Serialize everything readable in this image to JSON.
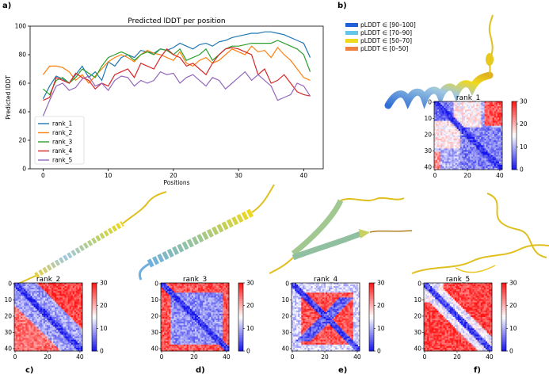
{
  "panel_labels": {
    "a": "a)",
    "b": "b)",
    "c": "c)",
    "d": "d)",
    "e": "e)",
    "f": "f)"
  },
  "plddt_legend": [
    {
      "label": "pLDDT ∈ [90–100]",
      "color": "#1f5fd8"
    },
    {
      "label": "pLDDT ∈ [70–90]",
      "color": "#63c6e8"
    },
    {
      "label": "pLDDT ∈ [50–70]",
      "color": "#f0d91c"
    },
    {
      "label": "pLDDT ∈ [0–50]",
      "color": "#f08040"
    }
  ],
  "chart_data": [
    {
      "type": "line",
      "title": "Predicted lDDT per position",
      "xlabel": "Positions",
      "ylabel": "Predicted lDDT",
      "xlim": [
        -2,
        43
      ],
      "ylim": [
        0,
        100
      ],
      "xticks": [
        0,
        10,
        20,
        30,
        40
      ],
      "yticks": [
        0,
        20,
        40,
        60,
        80,
        100
      ],
      "legend_position": "lower-left",
      "x": [
        0,
        1,
        2,
        3,
        4,
        5,
        6,
        7,
        8,
        9,
        10,
        11,
        12,
        13,
        14,
        15,
        16,
        17,
        18,
        19,
        20,
        21,
        22,
        23,
        24,
        25,
        26,
        27,
        28,
        29,
        30,
        31,
        32,
        33,
        34,
        35,
        36,
        37,
        38,
        39,
        40,
        41
      ],
      "series": [
        {
          "name": "rank_1",
          "color": "#1f77b4",
          "values": [
            49,
            58,
            65,
            63,
            60,
            66,
            72,
            64,
            68,
            62,
            75,
            72,
            78,
            80,
            78,
            83,
            82,
            81,
            84,
            83,
            85,
            88,
            86,
            84,
            87,
            88,
            86,
            89,
            90,
            92,
            93,
            94,
            95,
            95,
            96,
            96,
            95,
            94,
            92,
            90,
            88,
            78
          ]
        },
        {
          "name": "rank_2",
          "color": "#ff7f0e",
          "values": [
            66,
            72,
            72,
            71,
            68,
            62,
            66,
            60,
            65,
            70,
            75,
            78,
            80,
            78,
            75,
            80,
            83,
            81,
            80,
            78,
            76,
            82,
            74,
            72,
            76,
            78,
            74,
            76,
            80,
            84,
            82,
            80,
            86,
            82,
            83,
            78,
            85,
            80,
            76,
            70,
            64,
            62
          ]
        },
        {
          "name": "rank_3",
          "color": "#2ca02c",
          "values": [
            56,
            52,
            62,
            64,
            60,
            64,
            70,
            67,
            64,
            72,
            78,
            80,
            82,
            80,
            76,
            80,
            82,
            80,
            84,
            83,
            80,
            84,
            76,
            78,
            80,
            84,
            76,
            80,
            84,
            86,
            86,
            87,
            88,
            88,
            88,
            88,
            90,
            88,
            86,
            84,
            80,
            68
          ]
        },
        {
          "name": "rank_4",
          "color": "#d62728",
          "values": [
            48,
            50,
            64,
            62,
            60,
            67,
            64,
            62,
            56,
            60,
            58,
            66,
            68,
            70,
            64,
            74,
            72,
            70,
            78,
            84,
            80,
            78,
            72,
            74,
            70,
            66,
            74,
            80,
            84,
            85,
            84,
            82,
            80,
            66,
            70,
            60,
            62,
            66,
            60,
            54,
            52,
            51
          ]
        },
        {
          "name": "rank_5",
          "color": "#9467bd",
          "values": [
            37,
            48,
            58,
            60,
            55,
            57,
            63,
            65,
            58,
            60,
            55,
            62,
            65,
            64,
            58,
            62,
            60,
            62,
            68,
            66,
            67,
            60,
            64,
            66,
            62,
            58,
            64,
            62,
            56,
            60,
            64,
            68,
            62,
            66,
            62,
            58,
            48,
            50,
            52,
            60,
            58,
            51
          ]
        }
      ]
    },
    {
      "type": "heatmap",
      "title": "rank_1",
      "xticks": [
        0,
        20,
        40
      ],
      "yticks": [
        0,
        10,
        20,
        30,
        40
      ],
      "colorbar_ticks": [
        0,
        10,
        20,
        30
      ],
      "zlim": [
        0,
        30
      ]
    },
    {
      "type": "heatmap",
      "title": "rank_2",
      "xticks": [
        0,
        20,
        40
      ],
      "yticks": [
        0,
        10,
        20,
        30,
        40
      ],
      "colorbar_ticks": [
        0,
        10,
        20,
        30
      ],
      "zlim": [
        0,
        30
      ]
    },
    {
      "type": "heatmap",
      "title": "rank_3",
      "xticks": [
        0,
        20,
        40
      ],
      "yticks": [
        0,
        10,
        20,
        30,
        40
      ],
      "colorbar_ticks": [
        0,
        10,
        20,
        30
      ],
      "zlim": [
        0,
        30
      ]
    },
    {
      "type": "heatmap",
      "title": "rank_4",
      "xticks": [
        0,
        20,
        40
      ],
      "yticks": [
        0,
        10,
        20,
        30,
        40
      ],
      "colorbar_ticks": [
        0,
        10,
        20,
        30
      ],
      "zlim": [
        0,
        30
      ]
    },
    {
      "type": "heatmap",
      "title": "rank_5",
      "xticks": [
        0,
        20,
        40
      ],
      "yticks": [
        0,
        10,
        20,
        30,
        40
      ],
      "colorbar_ticks": [
        0,
        10,
        20,
        30
      ],
      "zlim": [
        0,
        30
      ]
    }
  ]
}
